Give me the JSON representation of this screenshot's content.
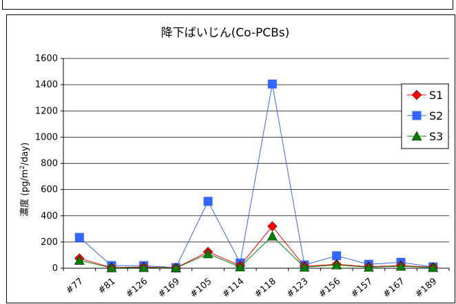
{
  "chart_data": {
    "type": "line",
    "title": "降下ばいじん(Co-PCBs)",
    "ylabel_prefix": "濃度 (pg/m",
    "ylabel_sup": "2",
    "ylabel_suffix": "/day)",
    "xlabel": "",
    "categories": [
      "#77",
      "#81",
      "#126",
      "#169",
      "#105",
      "#114",
      "#118",
      "#123",
      "#156",
      "#157",
      "#167",
      "#189"
    ],
    "ylim": [
      0,
      1600
    ],
    "yticks": [
      0,
      200,
      400,
      600,
      800,
      1000,
      1200,
      1400,
      1600
    ],
    "grid": "horizontal",
    "legend_position": "right",
    "series": [
      {
        "name": "S1",
        "color": "#ff0000",
        "marker": "diamond",
        "values": [
          75,
          5,
          10,
          3,
          125,
          20,
          320,
          15,
          30,
          12,
          20,
          8
        ]
      },
      {
        "name": "S2",
        "color": "#3366ff",
        "marker": "square",
        "values": [
          235,
          20,
          20,
          5,
          510,
          40,
          1405,
          25,
          95,
          30,
          45,
          10
        ]
      },
      {
        "name": "S3",
        "color": "#008000",
        "marker": "triangle",
        "values": [
          60,
          3,
          5,
          2,
          110,
          10,
          245,
          8,
          25,
          8,
          15,
          5
        ]
      }
    ]
  }
}
